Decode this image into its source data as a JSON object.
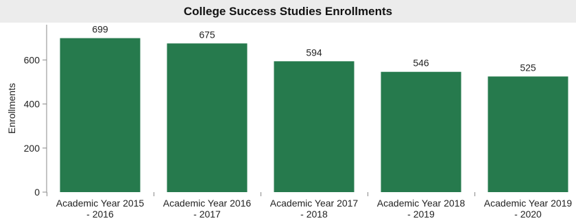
{
  "chart_data": {
    "type": "bar",
    "title": "College Success Studies Enrollments",
    "xlabel": "",
    "ylabel": "Enrollments",
    "categories": [
      [
        "Academic Year 2015",
        "- 2016"
      ],
      [
        "Academic Year 2016",
        "- 2017"
      ],
      [
        "Academic Year 2017",
        "- 2018"
      ],
      [
        "Academic Year 2018",
        "- 2019"
      ],
      [
        "Academic Year 2019",
        "- 2020"
      ]
    ],
    "values": [
      699,
      675,
      594,
      546,
      525
    ],
    "ylim": [
      0,
      760
    ],
    "yticks": [
      0,
      200,
      400,
      600
    ],
    "bar_color": "#267a4d",
    "grid": false,
    "data_labels": true
  }
}
